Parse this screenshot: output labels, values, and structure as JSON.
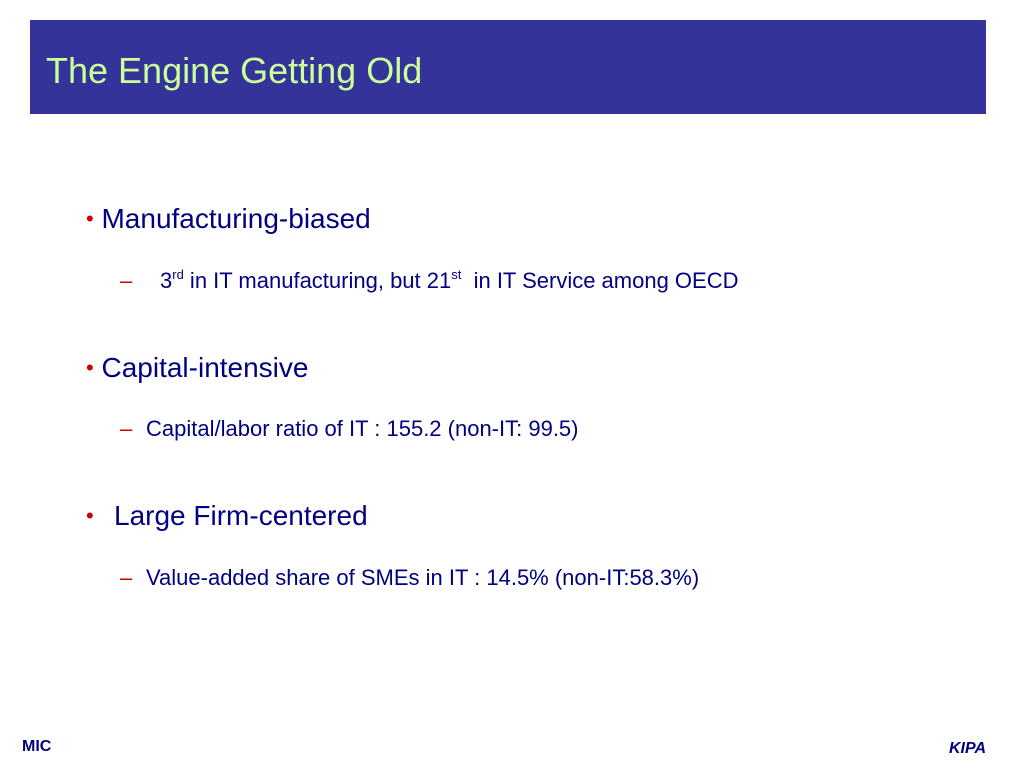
{
  "slide": {
    "title": "The Engine Getting Old",
    "bullets": [
      {
        "label": "Manufacturing-biased",
        "sub": {
          "part1": "3",
          "sup1": "rd",
          "part2": " in IT manufacturing, but 21",
          "sup2": "st",
          "part3": "  in IT Service among OECD"
        }
      },
      {
        "label": "Capital-intensive",
        "sub": "Capital/labor ratio of IT : 155.2 (non-IT: 99.5)"
      },
      {
        "label": "Large Firm-centered",
        "sub": "Value-added share of SMEs in IT : 14.5% (non-IT:58.3%)"
      }
    ],
    "footer": {
      "left": "MIC",
      "right": "KIPA"
    }
  },
  "symbols": {
    "bullet": "•",
    "dash": "–"
  },
  "colors": {
    "title_bar": "#333399",
    "title_text": "#ccff99",
    "body_text": "#000080",
    "bullet_marker": "#cc0000"
  }
}
